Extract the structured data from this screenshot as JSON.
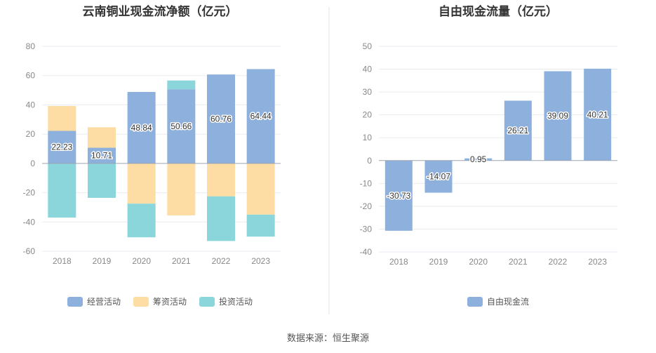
{
  "chart_data": [
    {
      "type": "bar",
      "stacked": true,
      "title": "云南铜业现金流净额（亿元）",
      "categories": [
        "2018",
        "2019",
        "2020",
        "2021",
        "2022",
        "2023"
      ],
      "yticks": [
        "80",
        "60",
        "40",
        "20",
        "0",
        "-20",
        "-40",
        "-60"
      ],
      "ylim": [
        -60,
        80
      ],
      "grid": true,
      "legend_position": "bottom",
      "series": [
        {
          "name": "经营活动",
          "color": "#8eb0dd",
          "values": [
            22.23,
            10.71,
            48.84,
            50.66,
            60.76,
            64.44
          ],
          "labels": [
            "22.23",
            "10.71",
            "48.84",
            "50.66",
            "60.76",
            "64.44"
          ]
        },
        {
          "name": "筹资活动",
          "color": "#fedda4",
          "values": [
            17.0,
            14.0,
            -27.5,
            -35.5,
            -22.5,
            -35.0
          ]
        },
        {
          "name": "投资活动",
          "color": "#8ad6da",
          "values": [
            -37.0,
            -23.5,
            -23.0,
            6.0,
            -30.5,
            -15.0
          ]
        }
      ]
    },
    {
      "type": "bar",
      "title": "自由现金流量（亿元）",
      "categories": [
        "2018",
        "2019",
        "2020",
        "2021",
        "2022",
        "2023"
      ],
      "yticks": [
        "50",
        "40",
        "30",
        "20",
        "10",
        "0",
        "-10",
        "-20",
        "-30",
        "-40"
      ],
      "ylim": [
        -40,
        50
      ],
      "grid": true,
      "legend_position": "bottom",
      "series": [
        {
          "name": "自由现金流",
          "color": "#8eb0dd",
          "values": [
            -30.73,
            -14.07,
            0.95,
            26.21,
            39.09,
            40.21
          ],
          "labels": [
            "-30.73",
            "-14.07",
            "0.95",
            "26.21",
            "39.09",
            "40.21"
          ]
        }
      ]
    }
  ],
  "source": "数据来源：恒生聚源",
  "colors": {
    "grid": "#e8ebf0",
    "axis": "#9aa3b0",
    "divider": "#e6e6e6"
  }
}
